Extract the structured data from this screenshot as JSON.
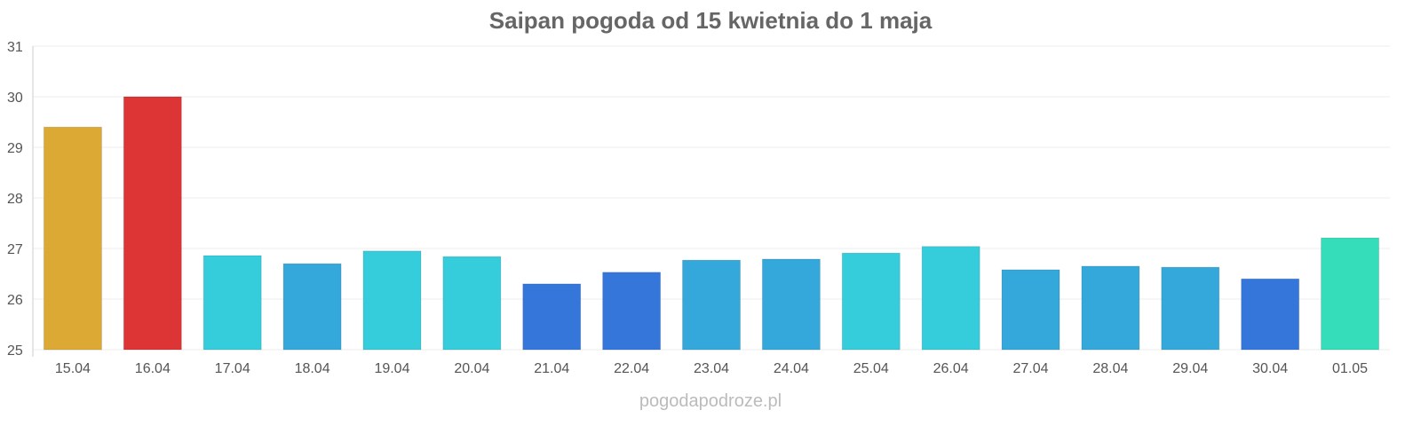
{
  "chart_data": {
    "type": "bar",
    "title": "Saipan pogoda od 15 kwietnia do 1 maja",
    "xlabel": "",
    "ylabel": "",
    "ylim": [
      25,
      31
    ],
    "yticks": [
      25,
      26,
      27,
      28,
      29,
      30,
      31
    ],
    "grid": true,
    "categories": [
      "15.04",
      "16.04",
      "17.04",
      "18.04",
      "19.04",
      "20.04",
      "21.04",
      "22.04",
      "23.04",
      "24.04",
      "25.04",
      "26.04",
      "27.04",
      "28.04",
      "29.04",
      "30.04",
      "01.05"
    ],
    "values": [
      29.4,
      30.0,
      26.86,
      26.7,
      26.95,
      26.84,
      26.3,
      26.53,
      26.77,
      26.79,
      26.91,
      27.04,
      26.58,
      26.65,
      26.63,
      26.4,
      27.21
    ],
    "colors": [
      "#DDA935",
      "#DD3435",
      "#35CDDB",
      "#35A8DB",
      "#35CDDB",
      "#35CDDB",
      "#3576DB",
      "#3576DB",
      "#35A8DB",
      "#35A8DB",
      "#35CDDB",
      "#35CDDB",
      "#35A8DB",
      "#35A8DB",
      "#35A8DB",
      "#3576DB",
      "#35DDBA"
    ]
  },
  "credit": "pogodapodroze.pl"
}
